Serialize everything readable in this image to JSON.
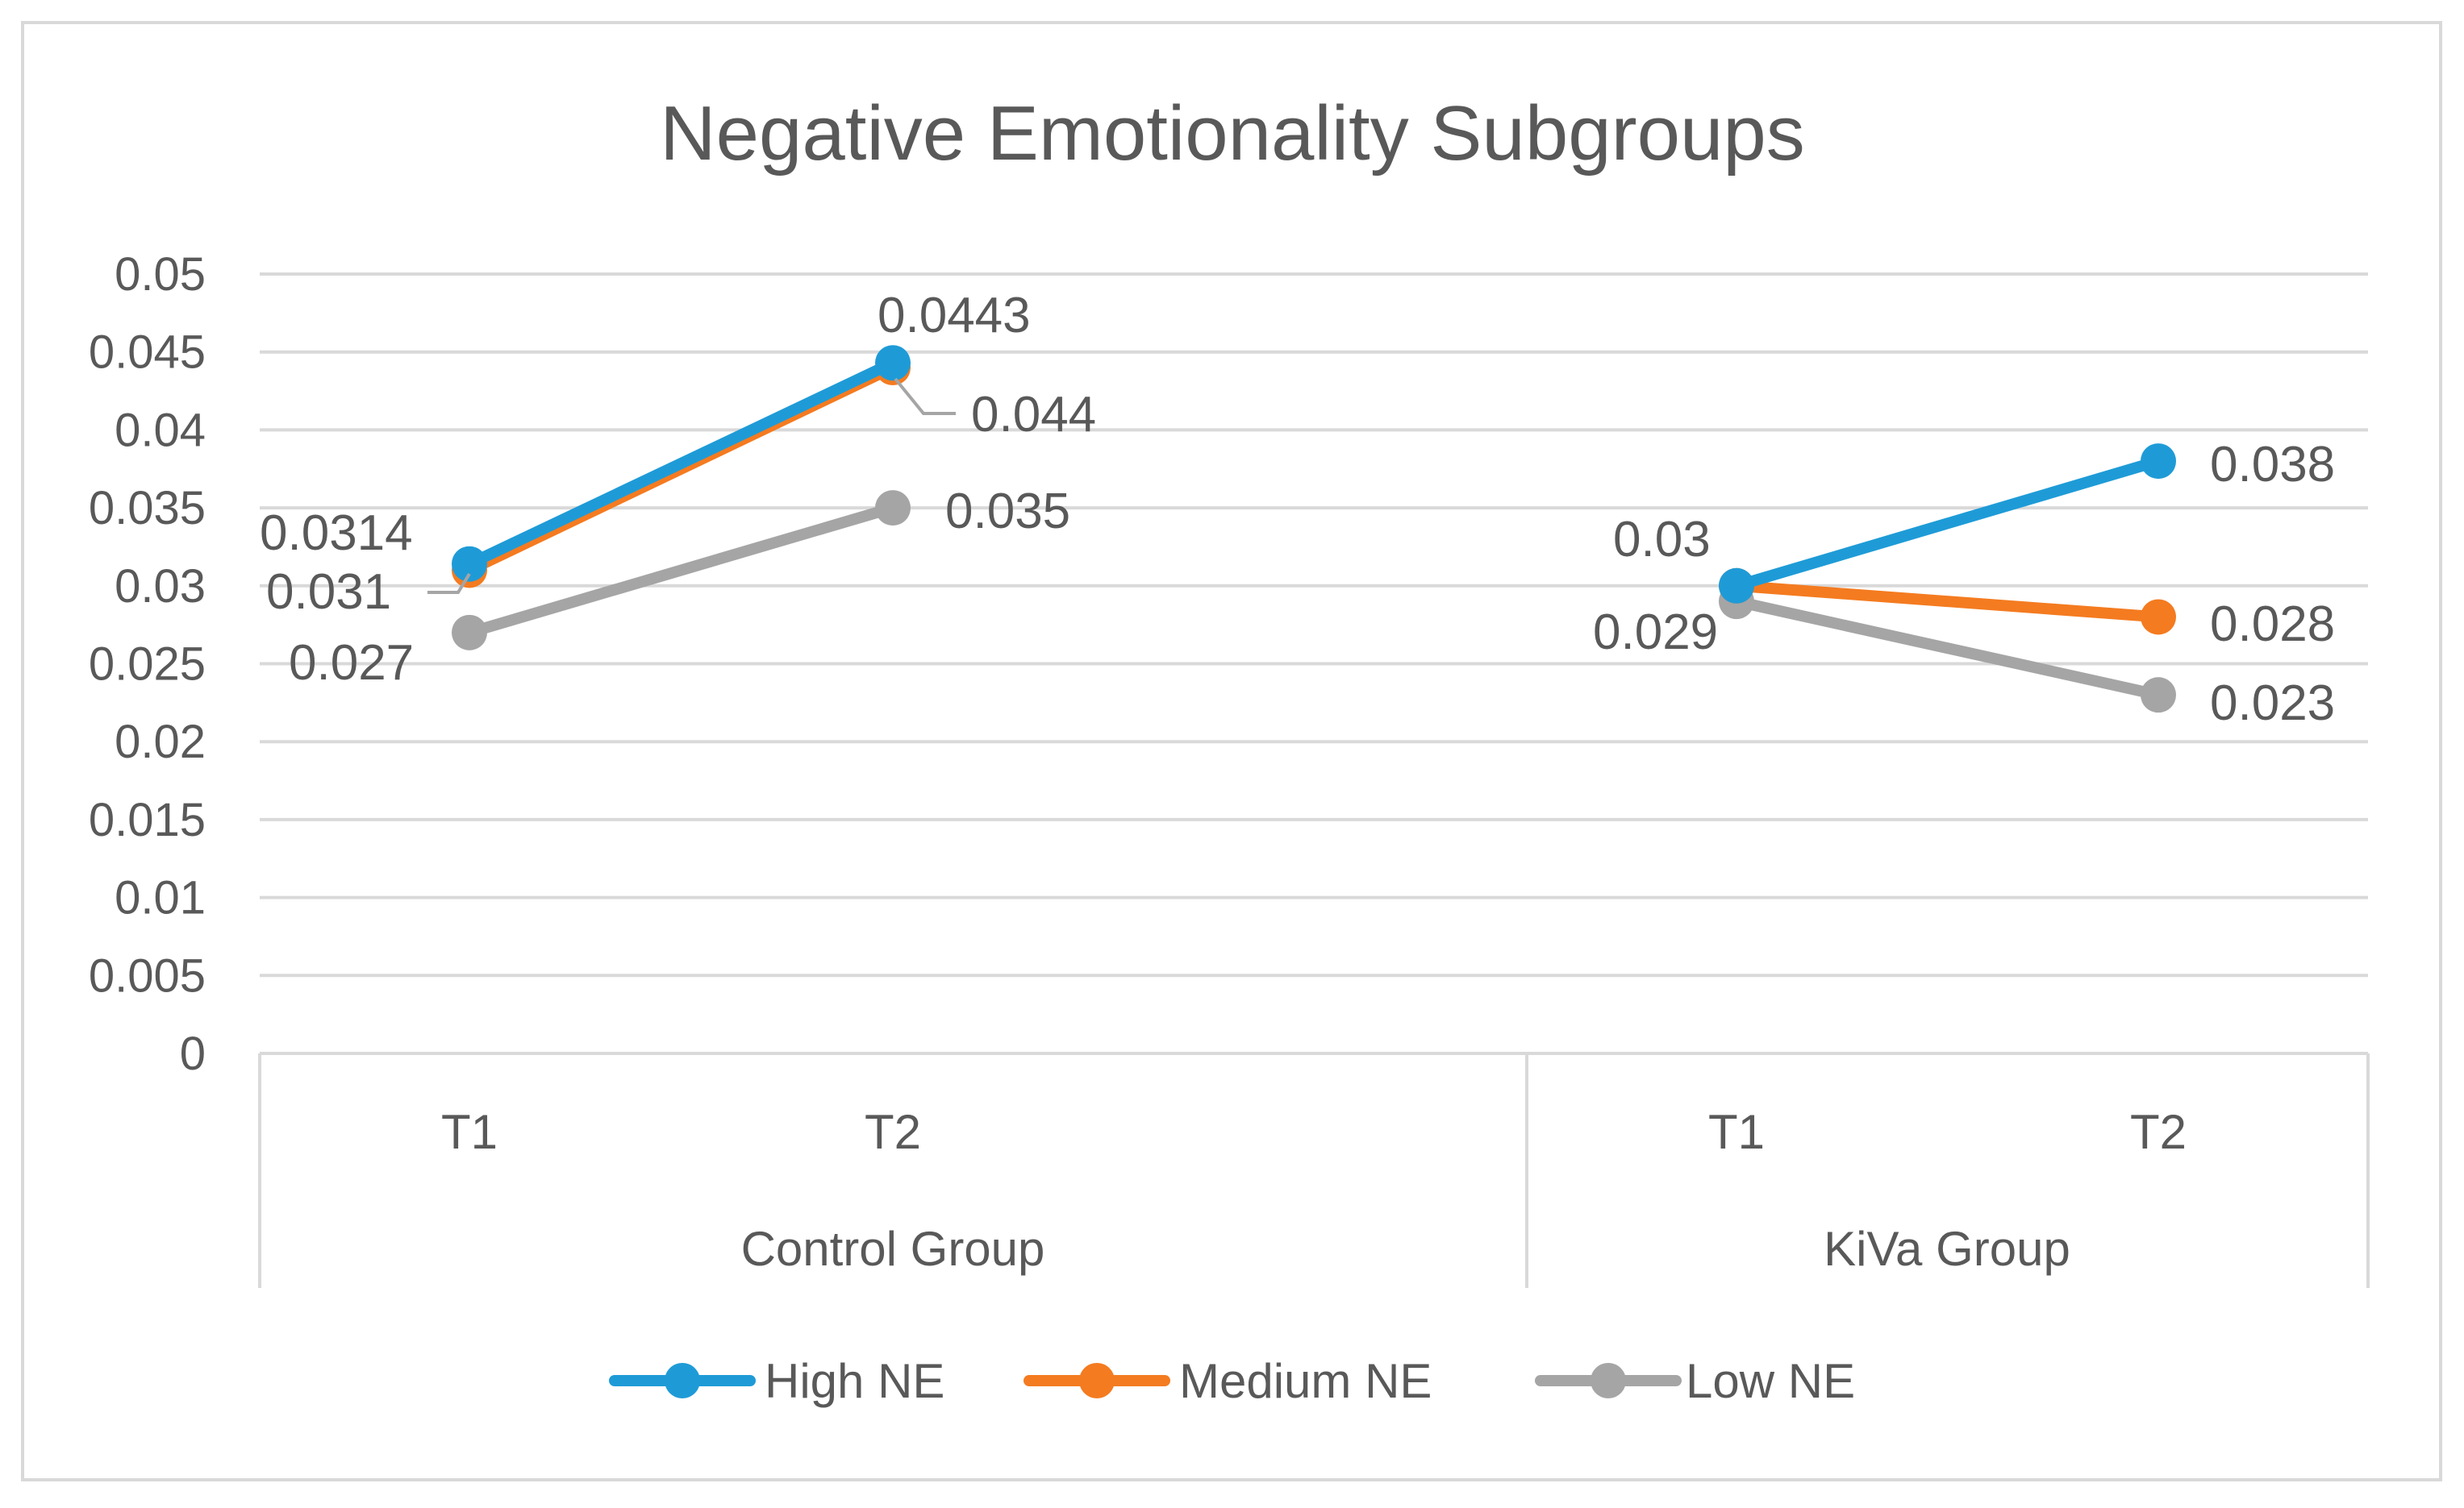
{
  "chart_data": {
    "type": "line",
    "title": "Negative Emotionality Subgroups",
    "xlabel": "",
    "ylabel": "",
    "ylim": [
      0,
      0.05
    ],
    "yticks": [
      0,
      0.005,
      0.01,
      0.015,
      0.02,
      0.025,
      0.03,
      0.035,
      0.04,
      0.045,
      0.05
    ],
    "ytick_labels": [
      "0",
      "0.005",
      "0.01",
      "0.015",
      "0.02",
      "0.025",
      "0.03",
      "0.035",
      "0.04",
      "0.045",
      "0.05"
    ],
    "grid": true,
    "legend_position": "bottom",
    "groups": [
      {
        "label": "Control Group",
        "categories": [
          "T1",
          "T2"
        ]
      },
      {
        "label": "KiVa Group",
        "categories": [
          "T1",
          "T2"
        ]
      }
    ],
    "categories": [
      "T1",
      "T2",
      "T1",
      "T2"
    ],
    "series": [
      {
        "name": "High NE",
        "color": "#1E9BD7",
        "values": [
          0.0314,
          0.0443,
          0.03,
          0.038
        ],
        "data_labels": [
          "0.0314",
          "0.0443",
          "",
          "0.038"
        ]
      },
      {
        "name": "Medium NE",
        "color": "#F47B20",
        "values": [
          0.031,
          0.044,
          0.03,
          0.028
        ],
        "data_labels": [
          "0.031",
          "0.044",
          "0.03",
          "0.028"
        ]
      },
      {
        "name": "Low NE",
        "color": "#A5A5A5",
        "values": [
          0.027,
          0.035,
          0.029,
          0.023
        ],
        "data_labels": [
          "0.027",
          "0.035",
          "0.029",
          "0.023"
        ]
      }
    ]
  },
  "colors": {
    "gridline": "#D9D9D9",
    "frame": "#D9D9D9",
    "text": "#595959"
  }
}
